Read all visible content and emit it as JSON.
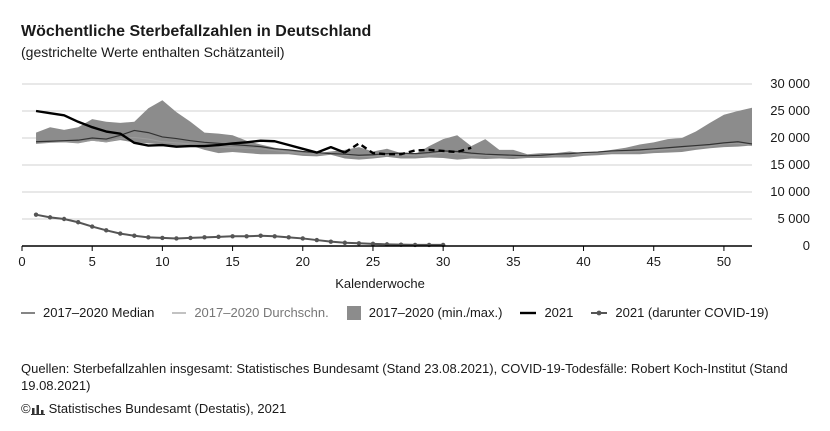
{
  "title": "Wöchentliche Sterbefallzahlen in Deutschland",
  "subtitle": "(gestrichelte Werte enthalten Schätzanteil)",
  "source": "Quellen: Sterbefallzahlen insgesamt: Statistisches Bundesamt (Stand 23.08.2021), COVID-19-Todesfälle: Robert Koch-Institut (Stand 19.08.2021)",
  "footer": "Statistisches Bundesamt (Destatis), 2021",
  "legend": {
    "median": "2017–2020 Median",
    "mean": "2017–2020 Durchschn.",
    "range": "2017–2020 (min./max.)",
    "y2021": "2021",
    "covid": "2021 (darunter COVID-19)"
  },
  "colors": {
    "range_fill": "#8c8c8c",
    "median": "#333333",
    "mean": "#9a9a9a",
    "y2021": "#000000",
    "covid": "#555555",
    "axis": "#000000"
  },
  "chart_data": {
    "type": "line",
    "xlabel": "Kalenderwoche",
    "ylabel": "",
    "xlim": [
      0,
      52
    ],
    "ylim": [
      0,
      30000
    ],
    "xticks": [
      0,
      5,
      10,
      15,
      20,
      25,
      30,
      35,
      40,
      45,
      50
    ],
    "xtick_labels": [
      "0",
      "5",
      "10",
      "15",
      "20",
      "25",
      "30",
      "35",
      "40",
      "45",
      "50"
    ],
    "yticks": [
      0,
      5000,
      10000,
      15000,
      20000,
      25000,
      30000
    ],
    "ytick_labels": [
      "0",
      "5 000",
      "10 000",
      "15 000",
      "20 000",
      "25 000",
      "30 000"
    ],
    "x": [
      1,
      2,
      3,
      4,
      5,
      6,
      7,
      8,
      9,
      10,
      11,
      12,
      13,
      14,
      15,
      16,
      17,
      18,
      19,
      20,
      21,
      22,
      23,
      24,
      25,
      26,
      27,
      28,
      29,
      30,
      31,
      32,
      33,
      34,
      35,
      36,
      37,
      38,
      39,
      40,
      41,
      42,
      43,
      44,
      45,
      46,
      47,
      48,
      49,
      50,
      51,
      52
    ],
    "range_max": [
      21000,
      22000,
      21500,
      22000,
      23500,
      23000,
      22800,
      23000,
      25500,
      27000,
      24800,
      23000,
      21000,
      20800,
      20500,
      19500,
      18800,
      18200,
      17800,
      17500,
      17200,
      17500,
      17800,
      18300,
      17500,
      18000,
      17200,
      17000,
      18500,
      19800,
      20500,
      18500,
      19800,
      17800,
      17800,
      17000,
      17200,
      17200,
      17500,
      17200,
      17500,
      17800,
      18200,
      18800,
      19200,
      19800,
      20000,
      21200,
      22800,
      24300,
      25000,
      25600
    ],
    "range_min": [
      19000,
      19200,
      19200,
      19000,
      19500,
      19200,
      19600,
      19200,
      19000,
      18800,
      18400,
      18600,
      17800,
      17200,
      17400,
      17200,
      17000,
      17000,
      17000,
      16700,
      16600,
      16900,
      16200,
      16000,
      16200,
      16500,
      16200,
      16200,
      16400,
      16300,
      16000,
      16200,
      16100,
      16200,
      16100,
      16300,
      16300,
      16400,
      16400,
      16700,
      16800,
      17000,
      17000,
      17000,
      17200,
      17300,
      17400,
      17800,
      18100,
      18300,
      18400,
      18600
    ],
    "median": [
      19300,
      19400,
      19500,
      19600,
      20000,
      19800,
      20500,
      21400,
      21000,
      20200,
      19900,
      19500,
      19200,
      19000,
      18800,
      18600,
      18400,
      18000,
      17800,
      17500,
      17300,
      17100,
      17000,
      16800,
      16900,
      17100,
      17200,
      17100,
      17300,
      17600,
      17500,
      17200,
      17000,
      16900,
      16800,
      16700,
      16800,
      17000,
      17100,
      17300,
      17400,
      17600,
      17700,
      17800,
      18000,
      18200,
      18400,
      18600,
      18800,
      19100,
      19300,
      18900
    ],
    "mean": [
      19000,
      19200,
      19300,
      19200,
      19600,
      19300,
      19900,
      20100,
      19800,
      19300,
      19100,
      18900,
      18600,
      18300,
      18200,
      18100,
      18000,
      17700,
      17400,
      17100,
      17000,
      17100,
      16800,
      16600,
      16600,
      16800,
      16900,
      16700,
      16900,
      17300,
      17100,
      16800,
      16800,
      16600,
      16700,
      16600,
      16800,
      16900,
      17000,
      17100,
      17300,
      17400,
      17400,
      17500,
      17700,
      17900,
      18100,
      18300,
      18500,
      18900,
      19000,
      18600
    ],
    "series_2021_solid": [
      [
        1,
        25000
      ],
      [
        2,
        24600
      ],
      [
        3,
        24200
      ],
      [
        4,
        23000
      ],
      [
        5,
        22000
      ],
      [
        6,
        21200
      ],
      [
        7,
        20800
      ],
      [
        8,
        19100
      ],
      [
        9,
        18600
      ],
      [
        10,
        18700
      ],
      [
        11,
        18400
      ],
      [
        12,
        18500
      ],
      [
        13,
        18500
      ],
      [
        14,
        18700
      ],
      [
        15,
        19000
      ],
      [
        16,
        19200
      ],
      [
        17,
        19500
      ],
      [
        18,
        19400
      ],
      [
        19,
        18700
      ],
      [
        20,
        18000
      ],
      [
        21,
        17300
      ],
      [
        22,
        18300
      ],
      [
        23,
        17300
      ]
    ],
    "series_2021_dashed": [
      [
        23,
        17300
      ],
      [
        24,
        19000
      ],
      [
        25,
        17200
      ],
      [
        26,
        17000
      ],
      [
        27,
        17000
      ],
      [
        28,
        17700
      ],
      [
        29,
        17800
      ],
      [
        30,
        17600
      ],
      [
        31,
        17400
      ],
      [
        32,
        18200
      ]
    ],
    "series_covid": [
      [
        1,
        5800
      ],
      [
        2,
        5300
      ],
      [
        3,
        5000
      ],
      [
        4,
        4400
      ],
      [
        5,
        3600
      ],
      [
        6,
        2900
      ],
      [
        7,
        2300
      ],
      [
        8,
        1900
      ],
      [
        9,
        1600
      ],
      [
        10,
        1500
      ],
      [
        11,
        1400
      ],
      [
        12,
        1500
      ],
      [
        13,
        1600
      ],
      [
        14,
        1700
      ],
      [
        15,
        1800
      ],
      [
        16,
        1800
      ],
      [
        17,
        1900
      ],
      [
        18,
        1800
      ],
      [
        19,
        1600
      ],
      [
        20,
        1400
      ],
      [
        21,
        1100
      ],
      [
        22,
        800
      ],
      [
        23,
        600
      ],
      [
        24,
        500
      ],
      [
        25,
        400
      ],
      [
        26,
        300
      ],
      [
        27,
        250
      ],
      [
        28,
        200
      ],
      [
        29,
        200
      ],
      [
        30,
        200
      ]
    ]
  }
}
